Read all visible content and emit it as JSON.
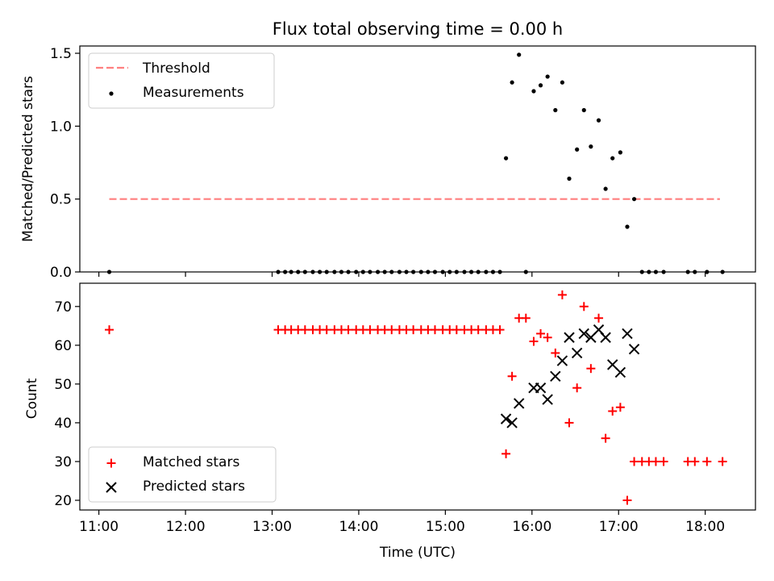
{
  "chart_data": [
    {
      "type": "scatter",
      "title": "Flux total observing time = 0.00 h",
      "xlabel": "",
      "ylabel": "Matched/Predicted stars",
      "ylim": [
        0,
        1.55
      ],
      "yticks": [
        0.0,
        0.5,
        1.0,
        1.5
      ],
      "ytick_labels": [
        "0.0",
        "0.5",
        "1.0",
        "1.5"
      ],
      "xlim": [
        10.78,
        18.58
      ],
      "legend": "top-left",
      "threshold": {
        "name": "Threshold",
        "value": 0.5,
        "x_start": 11.12,
        "x_end": 18.17,
        "color": "#ff7f7f"
      },
      "series": [
        {
          "name": "Measurements",
          "color": "#000000",
          "marker": "dot",
          "x": [
            11.12,
            13.07,
            13.15,
            13.22,
            13.3,
            13.38,
            13.47,
            13.55,
            13.63,
            13.72,
            13.8,
            13.88,
            13.97,
            14.05,
            14.13,
            14.22,
            14.3,
            14.38,
            14.47,
            14.55,
            14.63,
            14.72,
            14.8,
            14.88,
            14.97,
            15.05,
            15.13,
            15.22,
            15.3,
            15.38,
            15.47,
            15.55,
            15.63,
            15.7,
            15.77,
            15.85,
            15.93,
            16.02,
            16.1,
            16.18,
            16.27,
            16.35,
            16.43,
            16.52,
            16.6,
            16.68,
            16.77,
            16.85,
            16.93,
            17.02,
            17.1,
            17.18,
            17.27,
            17.35,
            17.43,
            17.52,
            17.8,
            17.88,
            18.02,
            18.2
          ],
          "y": [
            0,
            0,
            0,
            0,
            0,
            0,
            0,
            0,
            0,
            0,
            0,
            0,
            0,
            0,
            0,
            0,
            0,
            0,
            0,
            0,
            0,
            0,
            0,
            0,
            0,
            0,
            0,
            0,
            0,
            0,
            0,
            0,
            0,
            0.78,
            1.3,
            1.49,
            0,
            1.24,
            1.28,
            1.34,
            1.11,
            1.3,
            0.64,
            0.84,
            1.11,
            0.86,
            1.04,
            0.57,
            0.78,
            0.82,
            0.31,
            0.5,
            0,
            0,
            0,
            0,
            0,
            0,
            0,
            0
          ]
        }
      ]
    },
    {
      "type": "scatter",
      "title": "",
      "xlabel": "Time (UTC)",
      "ylabel": "Count",
      "ylim": [
        17.5,
        76
      ],
      "yticks": [
        20,
        30,
        40,
        50,
        60,
        70
      ],
      "ytick_labels": [
        "20",
        "30",
        "40",
        "50",
        "60",
        "70"
      ],
      "xlim": [
        10.78,
        18.58
      ],
      "xticks": [
        11,
        12,
        13,
        14,
        15,
        16,
        17,
        18
      ],
      "xtick_labels": [
        "11:00",
        "12:00",
        "13:00",
        "14:00",
        "15:00",
        "16:00",
        "17:00",
        "18:00"
      ],
      "legend": "bottom-left",
      "series": [
        {
          "name": "Matched stars",
          "color": "#ff0000",
          "marker": "plus",
          "x": [
            11.12,
            13.07,
            13.15,
            13.22,
            13.3,
            13.38,
            13.47,
            13.55,
            13.63,
            13.72,
            13.8,
            13.88,
            13.97,
            14.05,
            14.13,
            14.22,
            14.3,
            14.38,
            14.47,
            14.55,
            14.63,
            14.72,
            14.8,
            14.88,
            14.97,
            15.05,
            15.13,
            15.22,
            15.3,
            15.38,
            15.47,
            15.55,
            15.63,
            15.7,
            15.77,
            15.85,
            15.93,
            16.02,
            16.1,
            16.18,
            16.27,
            16.35,
            16.43,
            16.52,
            16.6,
            16.68,
            16.77,
            16.85,
            16.93,
            17.02,
            17.1,
            17.18,
            17.27,
            17.35,
            17.43,
            17.52,
            17.8,
            17.88,
            18.02,
            18.2
          ],
          "y": [
            64,
            64,
            64,
            64,
            64,
            64,
            64,
            64,
            64,
            64,
            64,
            64,
            64,
            64,
            64,
            64,
            64,
            64,
            64,
            64,
            64,
            64,
            64,
            64,
            64,
            64,
            64,
            64,
            64,
            64,
            64,
            64,
            64,
            32,
            52,
            67,
            67,
            61,
            63,
            62,
            58,
            73,
            40,
            49,
            70,
            54,
            67,
            36,
            43,
            44,
            20,
            30,
            30,
            30,
            30,
            30,
            30,
            30,
            30,
            30
          ]
        },
        {
          "name": "Predicted stars",
          "color": "#000000",
          "marker": "x",
          "x": [
            15.7,
            15.77,
            15.85,
            16.02,
            16.1,
            16.18,
            16.27,
            16.35,
            16.43,
            16.52,
            16.6,
            16.68,
            16.77,
            16.85,
            16.93,
            17.02,
            17.1,
            17.18
          ],
          "y": [
            41,
            40,
            45,
            49,
            49,
            46,
            52,
            56,
            62,
            58,
            63,
            62,
            64,
            62,
            55,
            53,
            63,
            59
          ]
        }
      ]
    }
  ]
}
